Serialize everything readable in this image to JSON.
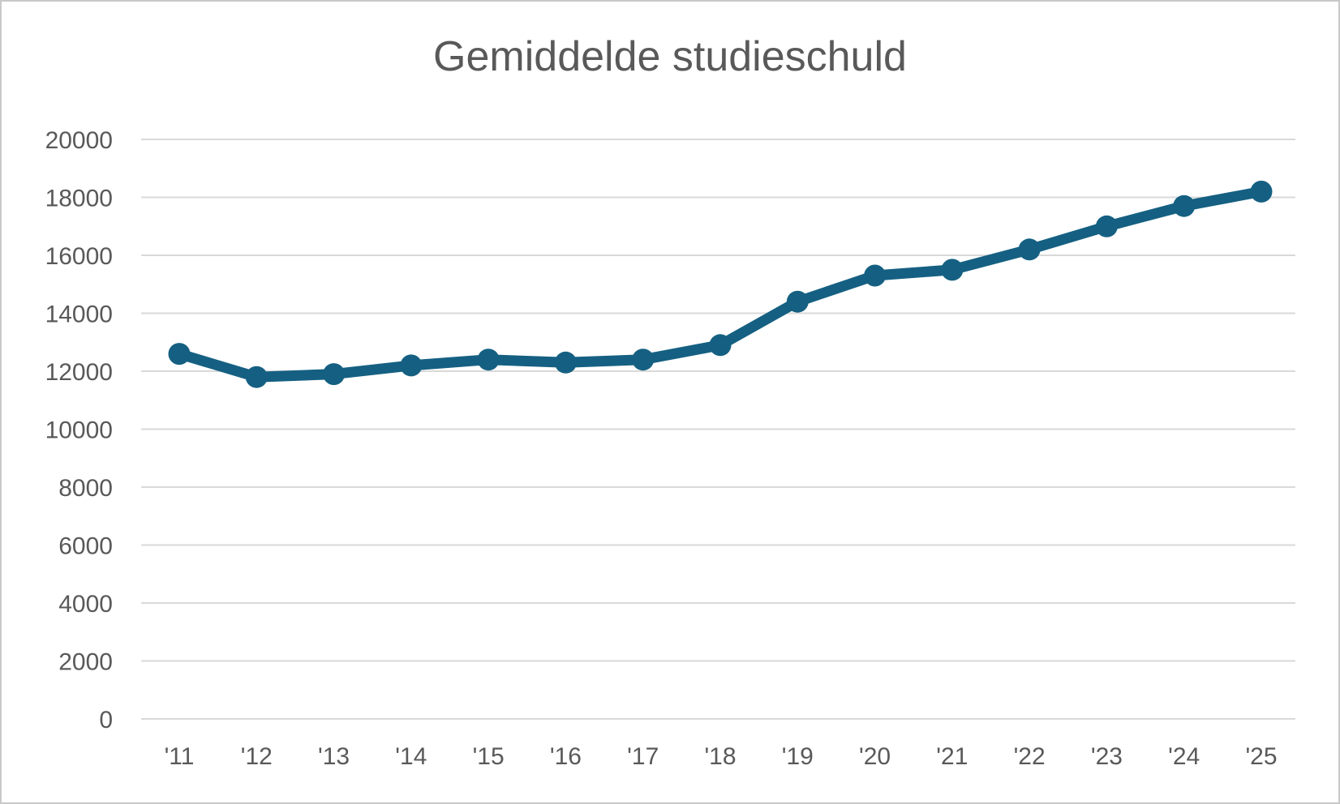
{
  "chart_data": {
    "type": "line",
    "title": "Gemiddelde studieschuld",
    "categories": [
      "'11",
      "'12",
      "'13",
      "'14",
      "'15",
      "'16",
      "'17",
      "'18",
      "'19",
      "'20",
      "'21",
      "'22",
      "'23",
      "'24",
      "'25"
    ],
    "series": [
      {
        "name": "Gemiddelde studieschuld",
        "values": [
          12600,
          11800,
          11900,
          12200,
          12400,
          12300,
          12400,
          12900,
          14400,
          15300,
          15500,
          16200,
          17000,
          17700,
          18200
        ]
      }
    ],
    "xlabel": "",
    "ylabel": "",
    "ylim": [
      0,
      20000
    ],
    "yticks": [
      0,
      2000,
      4000,
      6000,
      8000,
      10000,
      12000,
      14000,
      16000,
      18000,
      20000
    ],
    "grid": "horizontal",
    "legend": "none",
    "marker": "circle",
    "colors": {
      "line": "#156082",
      "marker": "#156082",
      "gridline": "#d9d9d9",
      "text": "#595959",
      "background": "#ffffff",
      "frame_border": "#c9c9c9"
    }
  }
}
